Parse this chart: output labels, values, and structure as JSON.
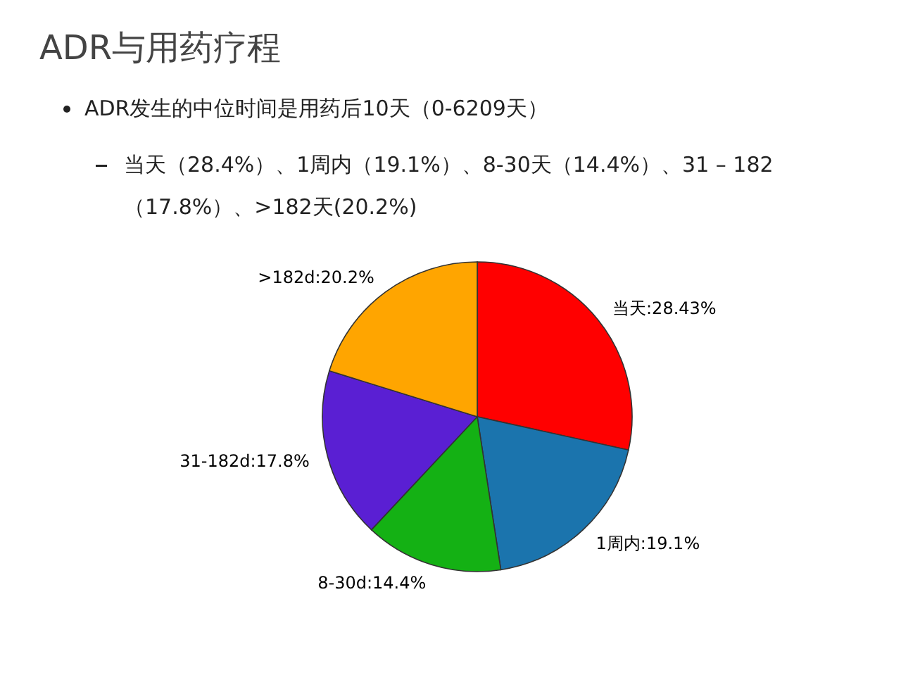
{
  "chart_data": {
    "type": "pie",
    "title": "ADR与用药疗程",
    "annotations": [
      "ADR发生的中位时间是用药后10天（0-6209天）",
      "当天（28.4%）、1周内（19.1%）、8-30天（14.4%）、31 – 182（17.8%）、>182天(20.2%)"
    ],
    "categories": [
      "当天",
      "1周内",
      "8-30d",
      "31-182d",
      ">182d"
    ],
    "values": [
      28.43,
      19.1,
      14.4,
      17.8,
      20.2
    ],
    "value_labels": [
      "28.43%",
      "19.1%",
      "14.4%",
      "17.8%",
      "20.2%"
    ],
    "colors": [
      "#ff0000",
      "#1b74ad",
      "#14b114",
      "#5a1fd3",
      "#ffa500"
    ]
  }
}
